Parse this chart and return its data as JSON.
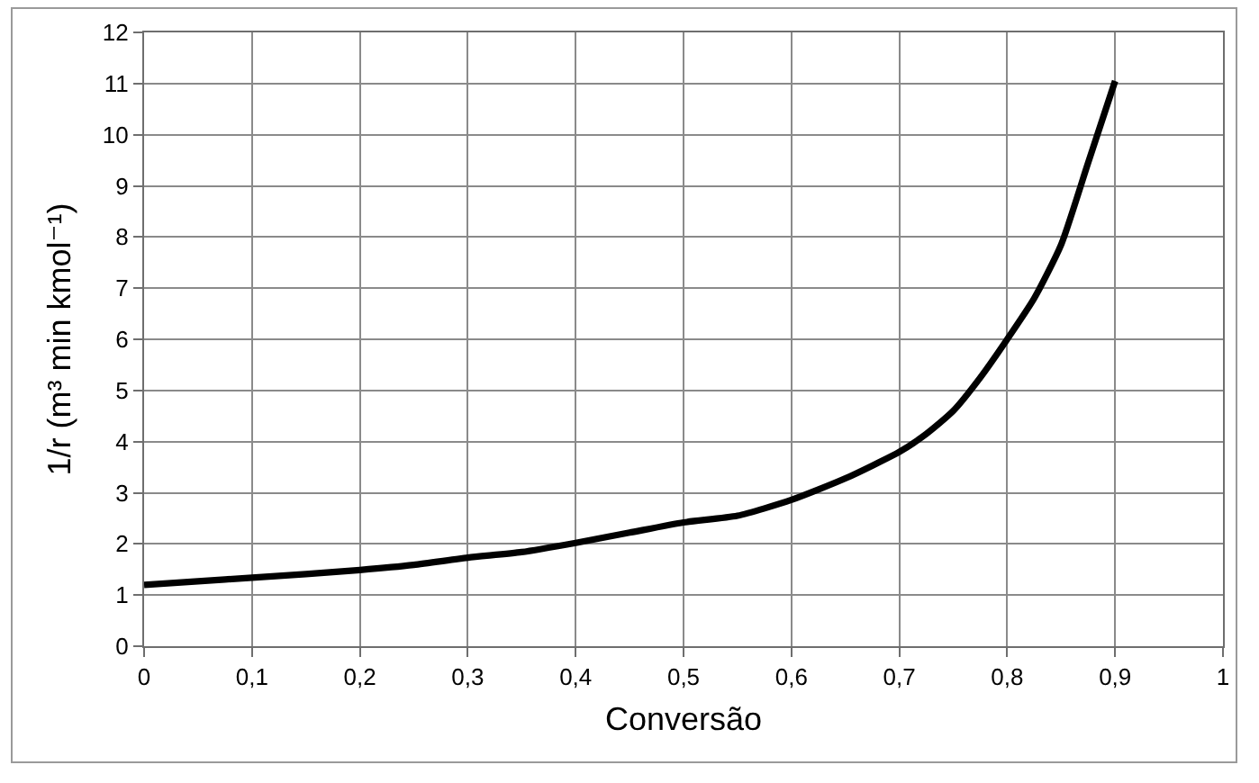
{
  "chart_data": {
    "type": "line",
    "xlabel": "Conversão",
    "ylabel": "1/r (m³ min kmol⁻¹)",
    "x": [
      0,
      0.05,
      0.1,
      0.15,
      0.2,
      0.25,
      0.3,
      0.35,
      0.4,
      0.45,
      0.5,
      0.55,
      0.6,
      0.65,
      0.7,
      0.725,
      0.75,
      0.775,
      0.8,
      0.825,
      0.85,
      0.875,
      0.9
    ],
    "series": [
      {
        "color": "#000000",
        "values": [
          1.2,
          1.27,
          1.34,
          1.41,
          1.49,
          1.59,
          1.73,
          1.84,
          2.02,
          2.22,
          2.42,
          2.55,
          2.86,
          3.28,
          3.8,
          4.15,
          4.6,
          5.25,
          6.0,
          6.8,
          7.85,
          9.45,
          11.05
        ]
      }
    ],
    "xlim": [
      0,
      1
    ],
    "ylim": [
      0,
      12
    ],
    "xticks": [
      0,
      {
        "value": 0.1,
        "label": "0,1"
      },
      {
        "value": 0.2,
        "label": "0,2"
      },
      {
        "value": 0.3,
        "label": "0,3"
      },
      {
        "value": 0.4,
        "label": "0,4"
      },
      {
        "value": 0.5,
        "label": "0,5"
      },
      {
        "value": 0.6,
        "label": "0,6"
      },
      {
        "value": 0.7,
        "label": "0,7"
      },
      {
        "value": 0.8,
        "label": "0,8"
      },
      {
        "value": 0.9,
        "label": "0,9"
      },
      1
    ],
    "yticks": [
      0,
      1,
      2,
      3,
      4,
      5,
      6,
      7,
      8,
      9,
      10,
      11,
      12
    ],
    "grid": true
  }
}
